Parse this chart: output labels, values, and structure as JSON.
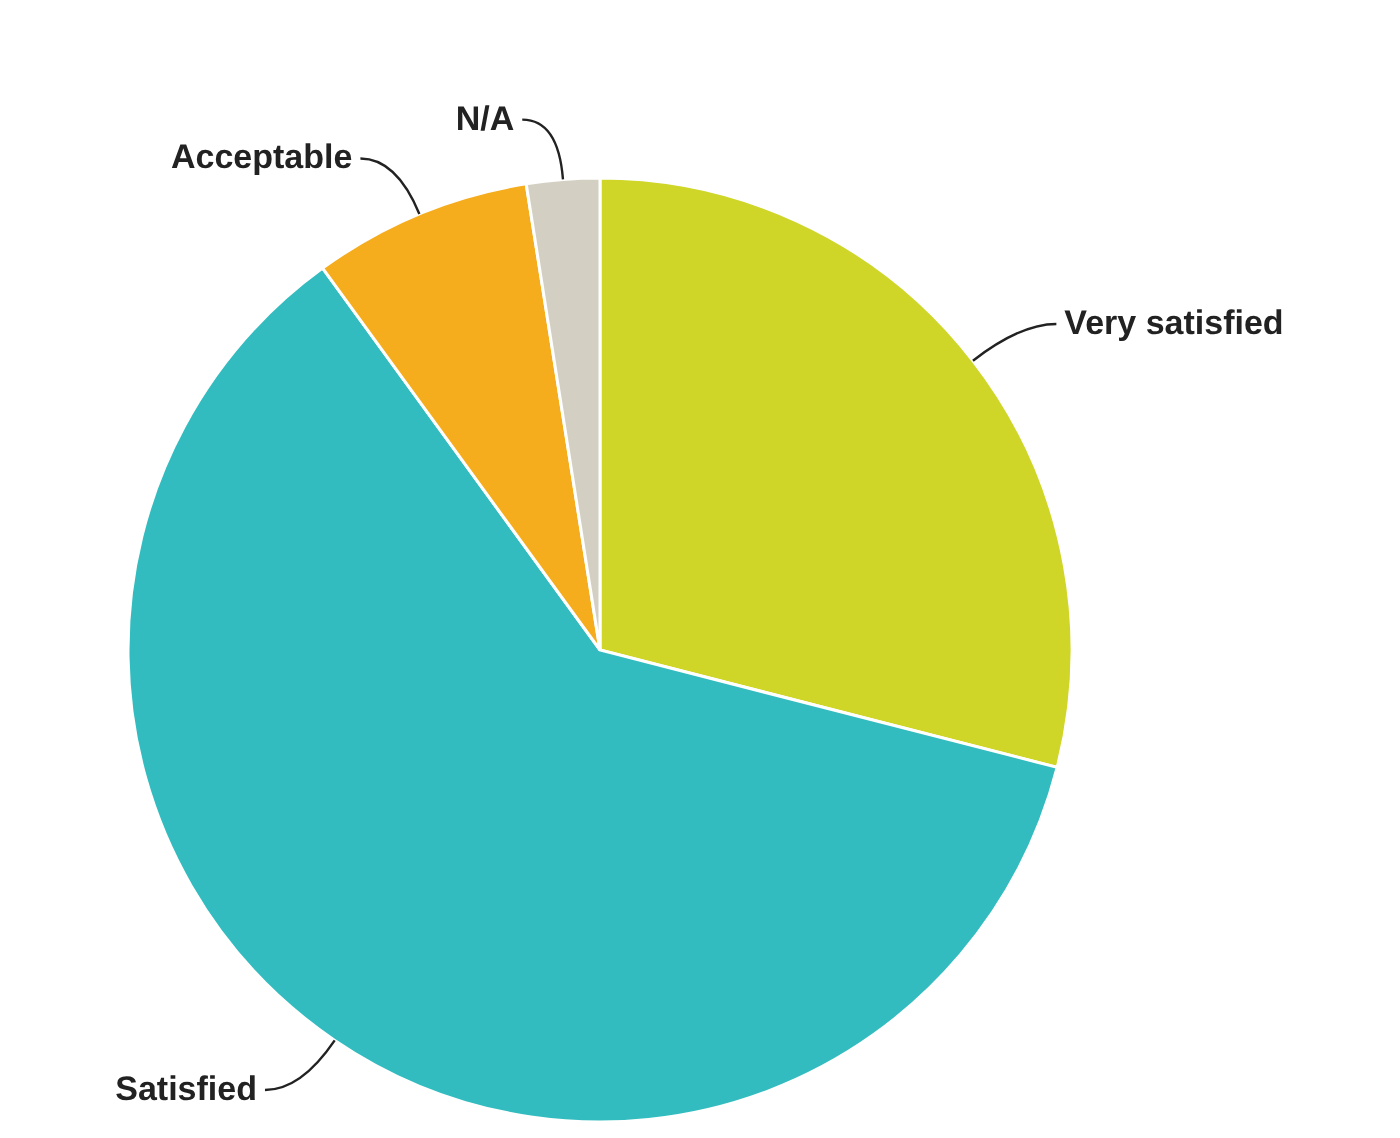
{
  "chart_data": {
    "type": "pie",
    "categories": [
      "Very satisfied",
      "Satisfied",
      "Acceptable",
      "N/A"
    ],
    "values": [
      29,
      61,
      7.5,
      2.5
    ],
    "colors": [
      "#cfd628",
      "#33bcbf",
      "#f5ad1e",
      "#d3d0c3"
    ],
    "legend": false
  }
}
